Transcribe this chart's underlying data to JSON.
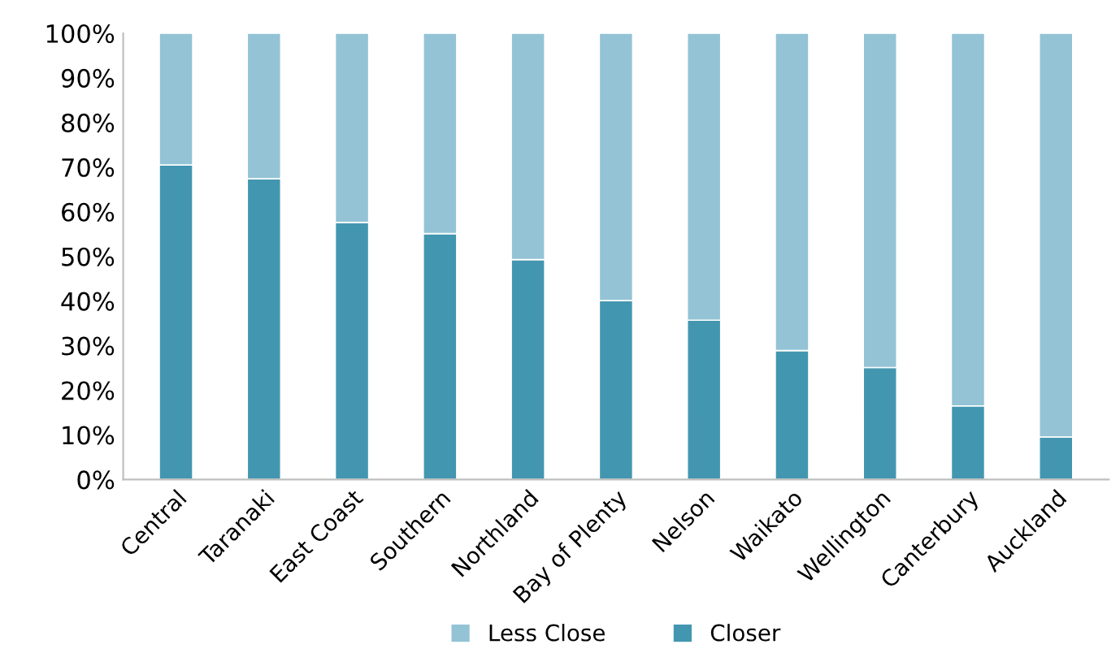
{
  "chart_data": {
    "type": "bar",
    "stacked": true,
    "categories": [
      "Central",
      "Taranaki",
      "East Coast",
      "Southern",
      "Northland",
      "Bay of Plenty",
      "Nelson",
      "Waikato",
      "Wellington",
      "Canterbury",
      "Auckland"
    ],
    "series": [
      {
        "name": "Closer",
        "color": "#4396b0",
        "values": [
          70.5,
          67.4,
          57.6,
          55.1,
          49.3,
          40.1,
          35.7,
          28.9,
          25.1,
          16.5,
          9.5
        ]
      },
      {
        "name": "Less Close",
        "color": "#93c3d5",
        "values": [
          29.5,
          32.6,
          42.4,
          44.9,
          50.7,
          59.9,
          64.3,
          71.1,
          74.9,
          83.5,
          90.5
        ]
      }
    ],
    "ylim": [
      0,
      100
    ],
    "yticks": [
      {
        "value": 0,
        "label": "0%"
      },
      {
        "value": 10,
        "label": "10%"
      },
      {
        "value": 20,
        "label": "20%"
      },
      {
        "value": 30,
        "label": "30%"
      },
      {
        "value": 40,
        "label": "40%"
      },
      {
        "value": 50,
        "label": "50%"
      },
      {
        "value": 60,
        "label": "60%"
      },
      {
        "value": 70,
        "label": "70%"
      },
      {
        "value": 80,
        "label": "80%"
      },
      {
        "value": 90,
        "label": "90%"
      },
      {
        "value": 100,
        "label": "100%"
      }
    ],
    "grid": false,
    "legend": "bottom"
  }
}
